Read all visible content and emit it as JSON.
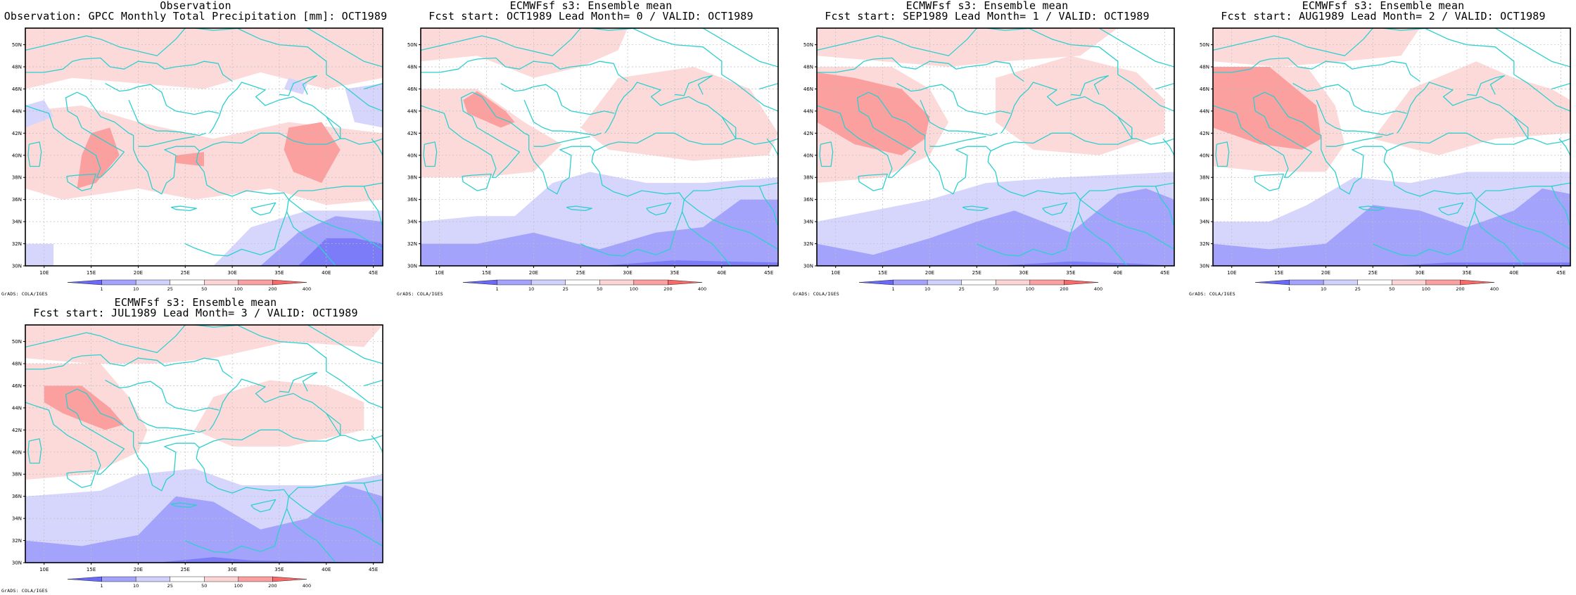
{
  "panels": [
    {
      "title_line1": "Observation",
      "title_line2": "Observation: GPCC Monthly Total Precipitation [mm]: OCT1989",
      "credit": "GrADS: COLA/IGES"
    },
    {
      "title_line1": "ECMWFsf s3: Ensemble mean",
      "title_line2": "Fcst start: OCT1989  Lead Month= 0 / VALID: OCT1989",
      "credit": "GrADS: COLA/IGES"
    },
    {
      "title_line1": "ECMWFsf s3: Ensemble mean",
      "title_line2": "Fcst start: SEP1989  Lead Month= 1 / VALID: OCT1989",
      "credit": "GrADS: COLA/IGES"
    },
    {
      "title_line1": "ECMWFsf s3: Ensemble mean",
      "title_line2": "Fcst start: AUG1989  Lead Month= 2 / VALID: OCT1989",
      "credit": "GrADS: COLA/IGES"
    },
    {
      "title_line1": "ECMWFsf s3: Ensemble mean",
      "title_line2": "Fcst start: JUL1989  Lead Month= 3 / VALID: OCT1989",
      "credit": "GrADS: COLA/IGES"
    }
  ],
  "map_axes": {
    "lon_range": [
      8,
      46
    ],
    "lat_range": [
      30,
      51.5
    ],
    "lon_ticks": [
      10,
      15,
      20,
      25,
      30,
      35,
      40,
      45
    ],
    "lon_tick_labels": [
      "10E",
      "15E",
      "20E",
      "25E",
      "30E",
      "35E",
      "40E",
      "45E"
    ],
    "lat_ticks": [
      30,
      32,
      34,
      36,
      38,
      40,
      42,
      44,
      46,
      48,
      50
    ],
    "lat_tick_labels": [
      "30N",
      "32N",
      "34N",
      "36N",
      "38N",
      "40N",
      "42N",
      "44N",
      "46N",
      "48N",
      "50N"
    ],
    "grid": true
  },
  "colorbar": {
    "labels": [
      "1",
      "10",
      "25",
      "50",
      "100",
      "200",
      "400"
    ],
    "colors": [
      "#6a6af8",
      "#a3a3fb",
      "#d1d1fd",
      "#ffffff",
      "#fdd5d5",
      "#fba0a0",
      "#f86a6a"
    ]
  },
  "colors": {
    "coastline": "#2ecfcf",
    "grid": "#bdbdbd",
    "dark_blue": "#7c7cf8",
    "mid_blue": "#a3a3fb",
    "light_blue": "#d6d6fd",
    "light_red": "#fddada",
    "mid_red": "#fb9f9f"
  }
}
